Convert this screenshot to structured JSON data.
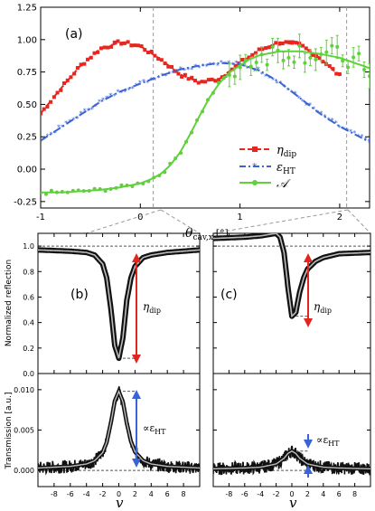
{
  "chart_data": [
    {
      "panel": "(a)",
      "type": "line",
      "xlabel": "θcav,x [°]",
      "xlim": [
        -1,
        2.3
      ],
      "ylim": [
        -0.3,
        1.25
      ],
      "xticks": [
        "-1",
        "0",
        "1",
        "2"
      ],
      "yticks": [
        "-0.25",
        "0.00",
        "0.25",
        "0.50",
        "0.75",
        "1.00",
        "1.25"
      ],
      "legend": {
        "placement": "bottom-right"
      },
      "series": [
        {
          "name": "ηdip",
          "color": "#e8261f",
          "style": "dashed-with-squares",
          "x": [
            -1.0,
            -0.8,
            -0.6,
            -0.4,
            -0.2,
            0.0,
            0.2,
            0.4,
            0.6,
            0.8,
            1.0,
            1.2,
            1.4,
            1.6,
            1.8,
            2.0
          ],
          "y": [
            0.43,
            0.62,
            0.8,
            0.93,
            0.98,
            0.95,
            0.85,
            0.73,
            0.67,
            0.7,
            0.82,
            0.92,
            0.98,
            0.96,
            0.86,
            0.72
          ]
        },
        {
          "name": "εHT",
          "color": "#3a63d6",
          "style": "dashdot-with-stars",
          "x": [
            -1.0,
            -0.8,
            -0.6,
            -0.4,
            -0.2,
            0.0,
            0.2,
            0.4,
            0.6,
            0.8,
            1.0,
            1.2,
            1.4,
            1.6,
            1.8,
            2.0,
            2.3
          ],
          "y": [
            0.22,
            0.32,
            0.42,
            0.52,
            0.6,
            0.66,
            0.72,
            0.77,
            0.8,
            0.82,
            0.81,
            0.76,
            0.67,
            0.55,
            0.43,
            0.33,
            0.21
          ]
        },
        {
          "name": "𝒜",
          "color": "#5fd13b",
          "style": "solid-with-circles-errorbars",
          "x": [
            -1.0,
            -0.8,
            -0.6,
            -0.4,
            -0.2,
            0.0,
            0.1,
            0.2,
            0.3,
            0.4,
            0.5,
            0.6,
            0.7,
            0.8,
            0.9,
            1.0,
            1.1,
            1.2,
            1.4,
            1.6,
            1.8,
            2.0,
            2.3
          ],
          "y": [
            -0.18,
            -0.18,
            -0.17,
            -0.16,
            -0.14,
            -0.11,
            -0.08,
            -0.04,
            0.03,
            0.13,
            0.27,
            0.42,
            0.56,
            0.67,
            0.75,
            0.8,
            0.85,
            0.88,
            0.91,
            0.91,
            0.89,
            0.86,
            0.78
          ]
        }
      ]
    },
    {
      "panel": "(b)",
      "type": "line",
      "ylabel": "Normalized reflection",
      "xlim": [
        -10,
        10
      ],
      "ylim": [
        0,
        1.1
      ],
      "yticks": [
        "0.0",
        "0.2",
        "0.4",
        "0.6",
        "0.8",
        "1.0"
      ],
      "annotation": "ηdip",
      "series": [
        {
          "x": [
            -10,
            -6,
            -4,
            -3,
            -2,
            -1.5,
            -1,
            -0.5,
            0,
            0.5,
            1,
            1.5,
            2,
            3,
            4,
            6,
            10
          ],
          "y": [
            0.97,
            0.96,
            0.95,
            0.93,
            0.86,
            0.75,
            0.52,
            0.22,
            0.12,
            0.28,
            0.58,
            0.75,
            0.84,
            0.91,
            0.93,
            0.95,
            0.97
          ]
        }
      ]
    },
    {
      "panel": "(c)",
      "type": "line",
      "xlim": [
        -10,
        10
      ],
      "ylim": [
        0,
        1.1
      ],
      "annotation": "ηdip",
      "series": [
        {
          "x": [
            -10,
            -6,
            -4,
            -2,
            -1.5,
            -1,
            -0.5,
            0,
            0.5,
            1,
            1.5,
            2,
            3,
            4,
            6,
            10
          ],
          "y": [
            1.06,
            1.07,
            1.08,
            1.1,
            1.07,
            0.95,
            0.68,
            0.45,
            0.48,
            0.64,
            0.75,
            0.82,
            0.88,
            0.91,
            0.94,
            0.95
          ]
        }
      ]
    },
    {
      "panel": "transmission-b",
      "type": "line",
      "ylabel": "Transmission [a.u.]",
      "xlabel": "v",
      "xlim": [
        -10,
        10
      ],
      "ylim": [
        -0.002,
        0.012
      ],
      "yticks": [
        "0.000",
        "0.005",
        "0.010"
      ],
      "xticks": [
        "-8",
        "-6",
        "-4",
        "-2",
        "0",
        "2",
        "4",
        "6",
        "8"
      ],
      "annotation": "∝εHT",
      "series": [
        {
          "x": [
            -10,
            -6,
            -4,
            -3,
            -2,
            -1.5,
            -1,
            -0.5,
            0,
            0.5,
            1,
            1.5,
            2,
            3,
            4,
            6,
            10
          ],
          "y": [
            0.0003,
            0.0005,
            0.0008,
            0.0012,
            0.0022,
            0.0035,
            0.0058,
            0.0086,
            0.0098,
            0.0085,
            0.0058,
            0.0036,
            0.0023,
            0.0012,
            0.0008,
            0.0005,
            0.0003
          ]
        }
      ]
    },
    {
      "panel": "transmission-c",
      "type": "line",
      "xlabel": "v",
      "xlim": [
        -10,
        10
      ],
      "ylim": [
        -0.002,
        0.012
      ],
      "xticks": [
        "-8",
        "-6",
        "-4",
        "-2",
        "0",
        "2",
        "4",
        "6",
        "8"
      ],
      "annotation": "∝εHT",
      "series": [
        {
          "x": [
            -10,
            -6,
            -4,
            -2,
            -1,
            -0.5,
            0,
            0.5,
            1,
            2,
            4,
            6,
            10
          ],
          "y": [
            0.0002,
            0.0003,
            0.0004,
            0.0008,
            0.0015,
            0.0021,
            0.0024,
            0.0021,
            0.0015,
            0.0008,
            0.0004,
            0.0003,
            0.0002
          ]
        }
      ]
    }
  ],
  "legend_entries": [
    "ηdip",
    "εHT",
    "𝒜"
  ],
  "panel_labels": [
    "(a)",
    "(b)",
    "(c)"
  ],
  "main_xlabel_base": "θ",
  "main_xlabel_sub": "cav,x",
  "main_xlabel_unit": "[°]",
  "refl_ylabel": "Normalized reflection",
  "trans_ylabel": "Transmission [a.u.]",
  "bottom_xlabel": "v",
  "eta_base": "η",
  "eta_sub": "dip",
  "eps_prefix": "∝ε",
  "eps_sub": "HT"
}
